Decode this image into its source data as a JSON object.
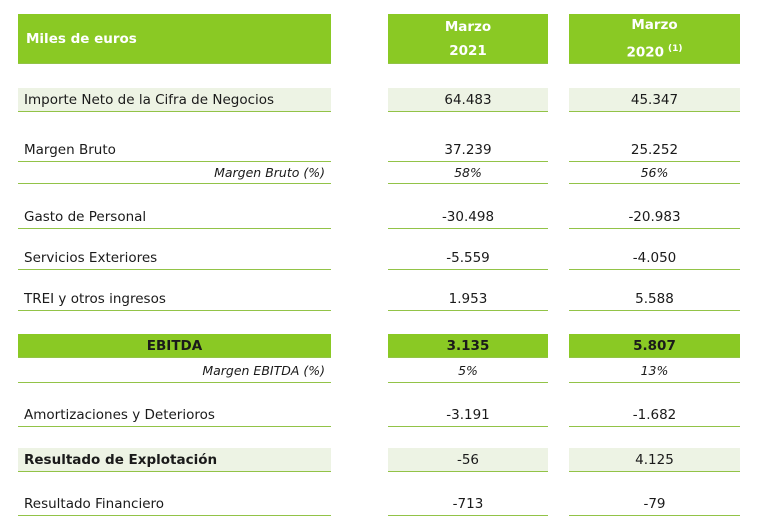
{
  "header": {
    "label": "Miles de euros",
    "col1_line1": "Marzo",
    "col1_line2": "2021",
    "col2_line1": "Marzo",
    "col2_line2": "2020",
    "col2_note": "(1)"
  },
  "rows": {
    "importe": {
      "label": "Importe Neto de la Cifra de Negocios",
      "v2021": "64.483",
      "v2020": "45.347"
    },
    "margen_bruto": {
      "label": "Margen Bruto",
      "v2021": "37.239",
      "v2020": "25.252"
    },
    "margen_bruto_pct": {
      "label": "Margen Bruto (%)",
      "v2021": "58%",
      "v2020": "56%"
    },
    "gasto_personal": {
      "label": "Gasto de Personal",
      "v2021": "-30.498",
      "v2020": "-20.983"
    },
    "servicios": {
      "label": "Servicios Exteriores",
      "v2021": "-5.559",
      "v2020": "-4.050"
    },
    "trei": {
      "label": "TREI y otros ingresos",
      "v2021": "1.953",
      "v2020": "5.588"
    },
    "ebitda": {
      "label": "EBITDA",
      "v2021": "3.135",
      "v2020": "5.807"
    },
    "margen_ebitda": {
      "label": "Margen EBITDA (%)",
      "v2021": "5%",
      "v2020": "13%"
    },
    "amortizaciones": {
      "label": "Amortizaciones y Deterioros",
      "v2021": "-3.191",
      "v2020": "-1.682"
    },
    "resultado_explotacion": {
      "label": "Resultado de Explotación",
      "v2021": "-56",
      "v2020": "4.125"
    },
    "resultado_financiero": {
      "label": "Resultado Financiero",
      "v2021": "-713",
      "v2020": "-79"
    }
  },
  "colors": {
    "header_green": "#8ac924",
    "row_tint": "#edf3e4",
    "rule_green": "#92c347"
  }
}
